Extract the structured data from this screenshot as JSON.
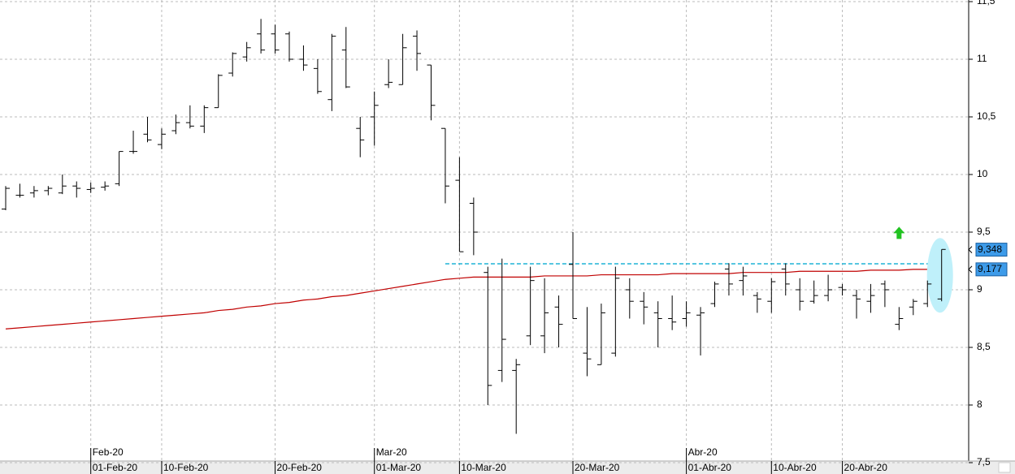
{
  "chart_data": {
    "type": "ohlc",
    "categories": [
      null,
      null,
      null,
      null,
      null,
      null,
      "01-Feb-20",
      null,
      null,
      null,
      null,
      "10-Feb-20",
      null,
      null,
      null,
      null,
      null,
      null,
      null,
      "20-Feb-20",
      null,
      null,
      null,
      null,
      null,
      null,
      "01-Mar-20",
      null,
      null,
      null,
      null,
      null,
      "10-Mar-20",
      null,
      null,
      null,
      null,
      null,
      null,
      null,
      "20-Mar-20",
      null,
      null,
      null,
      null,
      null,
      null,
      null,
      "01-Abr-20",
      null,
      null,
      null,
      null,
      null,
      "10-Abr-20",
      null,
      null,
      null,
      null,
      "20-Abr-20",
      null,
      null,
      null,
      null,
      null,
      null,
      null
    ],
    "month_labels": [
      null,
      null,
      null,
      null,
      null,
      null,
      "Feb-20",
      null,
      null,
      null,
      null,
      null,
      null,
      null,
      null,
      null,
      null,
      null,
      null,
      null,
      null,
      null,
      null,
      null,
      null,
      null,
      "Mar-20",
      null,
      null,
      null,
      null,
      null,
      null,
      null,
      null,
      null,
      null,
      null,
      null,
      null,
      null,
      null,
      null,
      null,
      null,
      null,
      null,
      null,
      "Abr-20",
      null,
      null,
      null,
      null,
      null,
      null,
      null,
      null,
      null,
      null,
      null,
      null,
      null,
      null,
      null,
      null,
      null,
      null
    ],
    "open": [
      9.7,
      9.82,
      9.84,
      9.86,
      9.84,
      9.9,
      9.87,
      9.89,
      9.92,
      10.2,
      10.35,
      10.26,
      10.38,
      10.45,
      10.42,
      10.58,
      10.88,
      11.02,
      11.22,
      11.22,
      11.22,
      11.0,
      10.92,
      10.65,
      11.08,
      10.4,
      10.5,
      10.78,
      10.78,
      11.2,
      10.95,
      10.4,
      9.95,
      9.75,
      9.15,
      8.3,
      8.3,
      8.6,
      8.6,
      8.85,
      9.22,
      8.45,
      8.35,
      8.45,
      9.0,
      8.9,
      8.8,
      8.75,
      8.75,
      8.78,
      8.88,
      9.18,
      9.08,
      8.95,
      8.9,
      9.18,
      9.0,
      8.9,
      8.95,
      9.02,
      8.95,
      8.9,
      9.05,
      8.7,
      8.85,
      8.88,
      8.92
    ],
    "high": [
      9.9,
      9.92,
      9.9,
      9.9,
      10.0,
      9.94,
      9.93,
      9.94,
      10.2,
      10.38,
      10.5,
      10.4,
      10.52,
      10.6,
      10.6,
      10.87,
      11.06,
      11.15,
      11.35,
      11.3,
      11.24,
      11.12,
      11.0,
      11.22,
      11.28,
      10.5,
      10.72,
      11.0,
      11.22,
      11.25,
      10.95,
      10.4,
      10.15,
      9.8,
      9.2,
      9.27,
      8.4,
      9.2,
      9.1,
      8.95,
      9.5,
      8.85,
      8.88,
      9.2,
      9.1,
      8.98,
      8.9,
      8.95,
      8.9,
      8.85,
      9.07,
      9.23,
      9.2,
      8.98,
      9.1,
      9.23,
      9.1,
      9.08,
      9.13,
      9.05,
      9.0,
      9.05,
      9.08,
      8.85,
      8.92,
      9.08,
      9.35
    ],
    "low": [
      9.69,
      9.8,
      9.8,
      9.82,
      9.83,
      9.8,
      9.84,
      9.86,
      9.9,
      10.18,
      10.28,
      10.22,
      10.35,
      10.4,
      10.36,
      10.58,
      10.85,
      10.98,
      11.05,
      11.05,
      10.98,
      10.9,
      10.7,
      10.55,
      10.75,
      10.15,
      10.25,
      10.75,
      10.78,
      10.9,
      10.47,
      9.75,
      9.33,
      9.3,
      8.0,
      8.2,
      7.75,
      8.52,
      8.45,
      8.5,
      8.75,
      8.25,
      8.35,
      8.42,
      8.75,
      8.7,
      8.5,
      8.65,
      8.68,
      8.43,
      8.85,
      8.95,
      8.95,
      8.8,
      8.8,
      8.95,
      8.82,
      8.88,
      8.9,
      8.95,
      8.75,
      8.8,
      8.85,
      8.65,
      8.78,
      8.85,
      8.9
    ],
    "close": [
      9.88,
      9.82,
      9.86,
      9.88,
      9.9,
      9.88,
      9.88,
      9.9,
      10.2,
      10.2,
      10.3,
      10.35,
      10.45,
      10.42,
      10.58,
      10.86,
      11.05,
      11.1,
      11.08,
      11.08,
      11.0,
      10.95,
      10.72,
      11.2,
      10.76,
      10.3,
      10.6,
      10.8,
      11.1,
      11.05,
      10.6,
      9.9,
      9.33,
      9.5,
      8.17,
      8.57,
      8.35,
      9.08,
      8.8,
      8.7,
      8.75,
      8.4,
      8.8,
      9.1,
      8.9,
      8.85,
      8.75,
      8.72,
      8.8,
      8.8,
      9.05,
      9.05,
      9.12,
      8.92,
      9.07,
      9.05,
      8.9,
      8.95,
      9.0,
      9.0,
      8.92,
      8.95,
      9.0,
      8.75,
      8.9,
      9.05,
      9.35
    ],
    "bar_color": "#000000",
    "moving_average": {
      "color": "#c00000",
      "values": [
        8.66,
        8.67,
        8.68,
        8.69,
        8.7,
        8.71,
        8.72,
        8.73,
        8.74,
        8.75,
        8.76,
        8.77,
        8.78,
        8.79,
        8.8,
        8.82,
        8.83,
        8.85,
        8.86,
        8.88,
        8.89,
        8.91,
        8.92,
        8.94,
        8.95,
        8.97,
        8.99,
        9.01,
        9.03,
        9.05,
        9.07,
        9.09,
        9.1,
        9.11,
        9.11,
        9.11,
        9.11,
        9.11,
        9.12,
        9.12,
        9.12,
        9.12,
        9.13,
        9.13,
        9.13,
        9.13,
        9.13,
        9.14,
        9.14,
        9.14,
        9.14,
        9.14,
        9.15,
        9.15,
        9.15,
        9.15,
        9.16,
        9.16,
        9.16,
        9.16,
        9.16,
        9.17,
        9.17,
        9.17,
        9.177,
        9.177,
        9.177
      ]
    },
    "price_labels": [
      {
        "value": 9.348,
        "label": "9,348"
      },
      {
        "value": 9.177,
        "label": "9,177"
      }
    ],
    "resistance": {
      "value": 9.225,
      "color": "#1fb3d6"
    },
    "signal": {
      "value": 9.49,
      "color": "#22c322"
    },
    "ylim": [
      7.5,
      11.5
    ],
    "yticks": [
      {
        "value": 7.5,
        "label": "7,5"
      },
      8,
      {
        "value": 8.5,
        "label": "8,5"
      },
      9,
      {
        "value": 9.5,
        "label": "9,5"
      },
      10,
      {
        "value": 10.5,
        "label": "10,5"
      },
      11,
      {
        "value": 11.5,
        "label": "11,5"
      }
    ],
    "grid": true
  }
}
